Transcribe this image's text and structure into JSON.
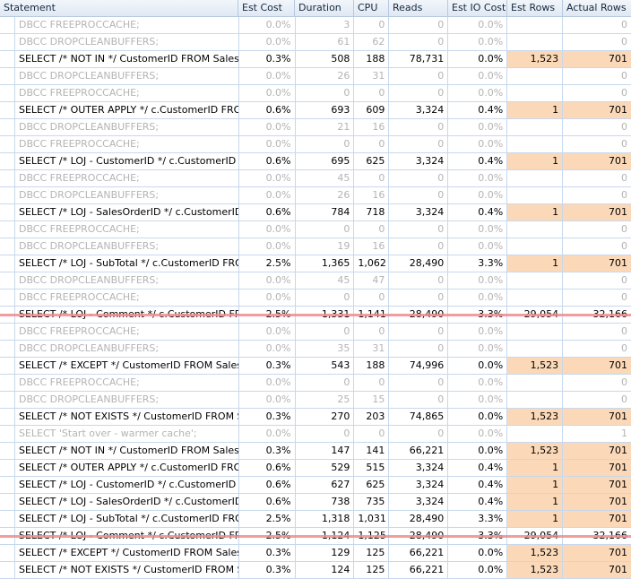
{
  "columns": [
    "Statement",
    "Est Cost",
    "Duration",
    "CPU",
    "Reads",
    "Est IO Cost",
    "Est Rows",
    "Actual Rows"
  ],
  "colors": {
    "highlight": "#fbd9b8",
    "strikethrough": "#f08c8c",
    "dim_text": "#b4b4b4",
    "grid_line": "#c8d8ec"
  },
  "rows": [
    {
      "statement": "DBCC FREEPROCCACHE;",
      "est_cost": "0.0%",
      "duration": "3",
      "cpu": "0",
      "reads": "0",
      "est_io": "0.0%",
      "est_rows": "",
      "actual_rows": "0",
      "type": "dim"
    },
    {
      "statement": "DBCC DROPCLEANBUFFERS;",
      "est_cost": "0.0%",
      "duration": "61",
      "cpu": "62",
      "reads": "0",
      "est_io": "0.0%",
      "est_rows": "",
      "actual_rows": "0",
      "type": "dim"
    },
    {
      "statement": "SELECT /* NOT IN */ CustomerID FROM Sales....",
      "est_cost": "0.3%",
      "duration": "508",
      "cpu": "188",
      "reads": "78,731",
      "est_io": "0.0%",
      "est_rows": "1,523",
      "actual_rows": "701",
      "type": "main"
    },
    {
      "statement": "DBCC DROPCLEANBUFFERS;",
      "est_cost": "0.0%",
      "duration": "26",
      "cpu": "31",
      "reads": "0",
      "est_io": "0.0%",
      "est_rows": "",
      "actual_rows": "0",
      "type": "dim"
    },
    {
      "statement": "DBCC FREEPROCCACHE;",
      "est_cost": "0.0%",
      "duration": "0",
      "cpu": "0",
      "reads": "0",
      "est_io": "0.0%",
      "est_rows": "",
      "actual_rows": "0",
      "type": "dim"
    },
    {
      "statement": "SELECT /* OUTER APPLY */ c.CustomerID FRO...",
      "est_cost": "0.6%",
      "duration": "693",
      "cpu": "609",
      "reads": "3,324",
      "est_io": "0.4%",
      "est_rows": "1",
      "actual_rows": "701",
      "type": "main"
    },
    {
      "statement": "DBCC DROPCLEANBUFFERS;",
      "est_cost": "0.0%",
      "duration": "21",
      "cpu": "16",
      "reads": "0",
      "est_io": "0.0%",
      "est_rows": "",
      "actual_rows": "0",
      "type": "dim"
    },
    {
      "statement": "DBCC FREEPROCCACHE;",
      "est_cost": "0.0%",
      "duration": "0",
      "cpu": "0",
      "reads": "0",
      "est_io": "0.0%",
      "est_rows": "",
      "actual_rows": "0",
      "type": "dim"
    },
    {
      "statement": "SELECT /* LOJ - CustomerID */ c.CustomerID F...",
      "est_cost": "0.6%",
      "duration": "695",
      "cpu": "625",
      "reads": "3,324",
      "est_io": "0.4%",
      "est_rows": "1",
      "actual_rows": "701",
      "type": "main"
    },
    {
      "statement": "DBCC FREEPROCCACHE;",
      "est_cost": "0.0%",
      "duration": "45",
      "cpu": "0",
      "reads": "0",
      "est_io": "0.0%",
      "est_rows": "",
      "actual_rows": "0",
      "type": "dim"
    },
    {
      "statement": "DBCC DROPCLEANBUFFERS;",
      "est_cost": "0.0%",
      "duration": "26",
      "cpu": "16",
      "reads": "0",
      "est_io": "0.0%",
      "est_rows": "",
      "actual_rows": "0",
      "type": "dim"
    },
    {
      "statement": "SELECT /* LOJ - SalesOrderID */ c.CustomerID ...",
      "est_cost": "0.6%",
      "duration": "784",
      "cpu": "718",
      "reads": "3,324",
      "est_io": "0.4%",
      "est_rows": "1",
      "actual_rows": "701",
      "type": "main"
    },
    {
      "statement": "DBCC FREEPROCCACHE;",
      "est_cost": "0.0%",
      "duration": "0",
      "cpu": "0",
      "reads": "0",
      "est_io": "0.0%",
      "est_rows": "",
      "actual_rows": "0",
      "type": "dim"
    },
    {
      "statement": "DBCC DROPCLEANBUFFERS;",
      "est_cost": "0.0%",
      "duration": "19",
      "cpu": "16",
      "reads": "0",
      "est_io": "0.0%",
      "est_rows": "",
      "actual_rows": "0",
      "type": "dim"
    },
    {
      "statement": "SELECT /* LOJ - SubTotal */ c.CustomerID FRO...",
      "est_cost": "2.5%",
      "duration": "1,365",
      "cpu": "1,062",
      "reads": "28,490",
      "est_io": "3.3%",
      "est_rows": "1",
      "actual_rows": "701",
      "type": "main"
    },
    {
      "statement": "DBCC DROPCLEANBUFFERS;",
      "est_cost": "0.0%",
      "duration": "45",
      "cpu": "47",
      "reads": "0",
      "est_io": "0.0%",
      "est_rows": "",
      "actual_rows": "0",
      "type": "dim"
    },
    {
      "statement": "DBCC FREEPROCCACHE;",
      "est_cost": "0.0%",
      "duration": "0",
      "cpu": "0",
      "reads": "0",
      "est_io": "0.0%",
      "est_rows": "",
      "actual_rows": "0",
      "type": "dim"
    },
    {
      "statement": "SELECT /* LOJ - Comment */ c.CustomerID FR...",
      "est_cost": "2.5%",
      "duration": "1,331",
      "cpu": "1,141",
      "reads": "28,490",
      "est_io": "3.3%",
      "est_rows": "29,054",
      "actual_rows": "32,166",
      "type": "strike"
    },
    {
      "statement": "DBCC FREEPROCCACHE;",
      "est_cost": "0.0%",
      "duration": "0",
      "cpu": "0",
      "reads": "0",
      "est_io": "0.0%",
      "est_rows": "",
      "actual_rows": "0",
      "type": "dim"
    },
    {
      "statement": "DBCC DROPCLEANBUFFERS;",
      "est_cost": "0.0%",
      "duration": "35",
      "cpu": "31",
      "reads": "0",
      "est_io": "0.0%",
      "est_rows": "",
      "actual_rows": "0",
      "type": "dim"
    },
    {
      "statement": "SELECT /* EXCEPT */ CustomerID FROM Sales....",
      "est_cost": "0.3%",
      "duration": "543",
      "cpu": "188",
      "reads": "74,996",
      "est_io": "0.0%",
      "est_rows": "1,523",
      "actual_rows": "701",
      "type": "main"
    },
    {
      "statement": "DBCC FREEPROCCACHE;",
      "est_cost": "0.0%",
      "duration": "0",
      "cpu": "0",
      "reads": "0",
      "est_io": "0.0%",
      "est_rows": "",
      "actual_rows": "0",
      "type": "dim"
    },
    {
      "statement": "DBCC DROPCLEANBUFFERS;",
      "est_cost": "0.0%",
      "duration": "25",
      "cpu": "15",
      "reads": "0",
      "est_io": "0.0%",
      "est_rows": "",
      "actual_rows": "0",
      "type": "dim"
    },
    {
      "statement": "SELECT /* NOT EXISTS */ CustomerID FROM S...",
      "est_cost": "0.3%",
      "duration": "270",
      "cpu": "203",
      "reads": "74,865",
      "est_io": "0.0%",
      "est_rows": "1,523",
      "actual_rows": "701",
      "type": "main"
    },
    {
      "statement": "SELECT 'Start over - warmer cache';",
      "est_cost": "0.0%",
      "duration": "0",
      "cpu": "0",
      "reads": "0",
      "est_io": "0.0%",
      "est_rows": "",
      "actual_rows": "1",
      "type": "dim"
    },
    {
      "statement": "SELECT /* NOT IN */ CustomerID FROM Sales....",
      "est_cost": "0.3%",
      "duration": "147",
      "cpu": "141",
      "reads": "66,221",
      "est_io": "0.0%",
      "est_rows": "1,523",
      "actual_rows": "701",
      "type": "main"
    },
    {
      "statement": "SELECT /* OUTER APPLY */ c.CustomerID FRO...",
      "est_cost": "0.6%",
      "duration": "529",
      "cpu": "515",
      "reads": "3,324",
      "est_io": "0.4%",
      "est_rows": "1",
      "actual_rows": "701",
      "type": "main"
    },
    {
      "statement": "SELECT /* LOJ - CustomerID */ c.CustomerID F...",
      "est_cost": "0.6%",
      "duration": "627",
      "cpu": "625",
      "reads": "3,324",
      "est_io": "0.4%",
      "est_rows": "1",
      "actual_rows": "701",
      "type": "main"
    },
    {
      "statement": "SELECT /* LOJ - SalesOrderID */ c.CustomerID ...",
      "est_cost": "0.6%",
      "duration": "738",
      "cpu": "735",
      "reads": "3,324",
      "est_io": "0.4%",
      "est_rows": "1",
      "actual_rows": "701",
      "type": "main"
    },
    {
      "statement": "SELECT /* LOJ - SubTotal */ c.CustomerID FRO...",
      "est_cost": "2.5%",
      "duration": "1,318",
      "cpu": "1,031",
      "reads": "28,490",
      "est_io": "3.3%",
      "est_rows": "1",
      "actual_rows": "701",
      "type": "main"
    },
    {
      "statement": "SELECT /* LOJ - Comment */ c.CustomerID FR...",
      "est_cost": "2.5%",
      "duration": "1,124",
      "cpu": "1,125",
      "reads": "28,490",
      "est_io": "3.3%",
      "est_rows": "29,054",
      "actual_rows": "32,166",
      "type": "strike"
    },
    {
      "statement": "SELECT /* EXCEPT */ CustomerID FROM Sales....",
      "est_cost": "0.3%",
      "duration": "129",
      "cpu": "125",
      "reads": "66,221",
      "est_io": "0.0%",
      "est_rows": "1,523",
      "actual_rows": "701",
      "type": "main"
    },
    {
      "statement": "SELECT /* NOT EXISTS */ CustomerID FROM S...",
      "est_cost": "0.3%",
      "duration": "124",
      "cpu": "125",
      "reads": "66,221",
      "est_io": "0.0%",
      "est_rows": "1,523",
      "actual_rows": "701",
      "type": "main"
    }
  ]
}
